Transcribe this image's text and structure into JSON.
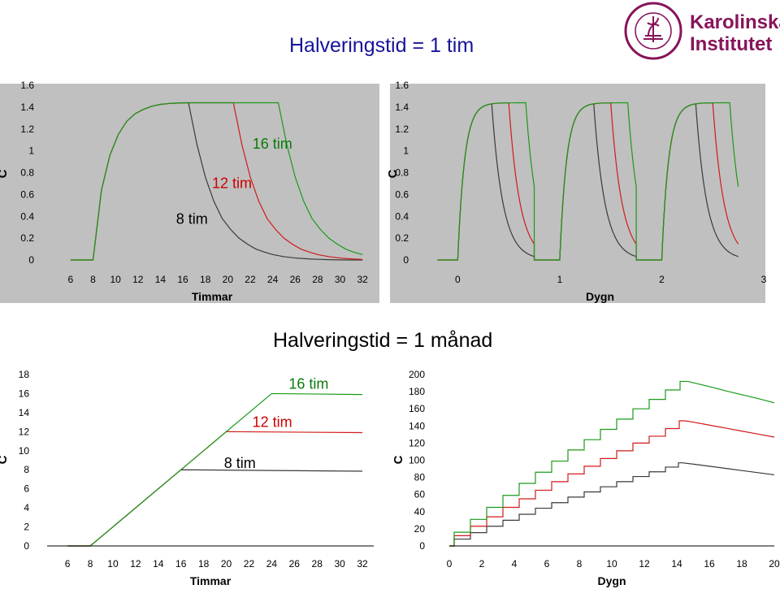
{
  "titles": {
    "top": "Halveringstid = 1 tim",
    "bottom": "Halveringstid = 1 månad"
  },
  "logo": {
    "seal_text": "KAROLINSKA INSTITUTET · ANNO 1810",
    "name_line1": "Karolinska",
    "name_line2": "Institutet",
    "color": "#87145a"
  },
  "colors": {
    "series_8": "#3a3a3a",
    "series_12": "#d21a1a",
    "series_16": "#1a9a1a",
    "plot_bg": "#c0c0c0",
    "frame": "#000000",
    "label_8": "#000000",
    "label_12": "#cc0000",
    "label_16": "#0a7a0a"
  },
  "chart_data": [
    {
      "id": "single-dose-hours",
      "type": "line",
      "xlabel": "Timmar",
      "ylabel": "C",
      "xlim": [
        4.2,
        33
      ],
      "ylim": [
        0,
        1.6
      ],
      "xticks": [
        "6",
        "8",
        "10",
        "12",
        "14",
        "16",
        "18",
        "20",
        "22",
        "24",
        "26",
        "28",
        "30",
        "32"
      ],
      "yticks": [
        "0",
        "0.2",
        "0.4",
        "0.6",
        "0.8",
        "1",
        "1.2",
        "1.4",
        "1.6"
      ],
      "series": [
        {
          "name": "8 tim",
          "color_key": "series_8",
          "x": [
            6,
            8,
            8.75,
            9.5,
            10.25,
            11,
            11.75,
            12.5,
            13.25,
            14,
            14.75,
            15.5,
            16,
            16.5,
            17.25,
            18,
            18.75,
            19.5,
            20.25,
            21,
            21.75,
            22.5,
            23.25,
            24,
            25,
            26,
            27,
            28,
            29,
            30,
            31,
            32
          ],
          "y": [
            0,
            0,
            0.64,
            0.96,
            1.15,
            1.27,
            1.34,
            1.38,
            1.409,
            1.425,
            1.433,
            1.437,
            1.44,
            1.44,
            1.06,
            0.76,
            0.54,
            0.38,
            0.28,
            0.2,
            0.145,
            0.1,
            0.073,
            0.05,
            0.03,
            0.018,
            0.011,
            0.006,
            0.003,
            0.001,
            0,
            0
          ]
        },
        {
          "name": "12 tim",
          "color_key": "series_12",
          "x": [
            6,
            8,
            8.75,
            9.5,
            10.25,
            11,
            11.75,
            12.5,
            13.25,
            14,
            14.75,
            15.5,
            16.5,
            17.5,
            18.5,
            19.5,
            20.5,
            21.25,
            22,
            22.75,
            23.5,
            24.25,
            25,
            25.75,
            26.5,
            27.25,
            28,
            29,
            30,
            31,
            32
          ],
          "y": [
            0,
            0,
            0.64,
            0.96,
            1.15,
            1.27,
            1.34,
            1.38,
            1.409,
            1.425,
            1.433,
            1.437,
            1.44,
            1.44,
            1.44,
            1.44,
            1.44,
            1.06,
            0.76,
            0.54,
            0.38,
            0.28,
            0.2,
            0.145,
            0.1,
            0.073,
            0.05,
            0.03,
            0.018,
            0.01,
            0.005
          ]
        },
        {
          "name": "16 tim",
          "color_key": "series_16",
          "x": [
            6,
            8,
            8.75,
            9.5,
            10.25,
            11,
            11.75,
            12.5,
            13.25,
            14,
            14.75,
            15.5,
            16.5,
            17.5,
            18.5,
            19.5,
            20.5,
            21.5,
            22.5,
            23.5,
            24.5,
            25.25,
            26,
            26.75,
            27.5,
            28.25,
            29,
            29.75,
            30.5,
            31.25,
            32
          ],
          "y": [
            0,
            0,
            0.64,
            0.96,
            1.15,
            1.27,
            1.34,
            1.38,
            1.409,
            1.425,
            1.433,
            1.437,
            1.44,
            1.44,
            1.44,
            1.44,
            1.44,
            1.44,
            1.44,
            1.44,
            1.44,
            1.06,
            0.76,
            0.54,
            0.38,
            0.28,
            0.2,
            0.145,
            0.1,
            0.07,
            0.05
          ]
        }
      ],
      "annotations": [
        {
          "text": "8 tim",
          "color_key": "label_8",
          "x": 15.4,
          "y": 0.33
        },
        {
          "text": "12 tim",
          "color_key": "label_12",
          "x": 18.6,
          "y": 0.66
        },
        {
          "text": "16 tim",
          "color_key": "label_16",
          "x": 22.2,
          "y": 1.02
        }
      ]
    },
    {
      "id": "repeated-dose-days",
      "type": "line",
      "xlabel": "Dygn",
      "ylabel": "C",
      "xlim": [
        -0.21,
        3
      ],
      "ylim": [
        0,
        1.6
      ],
      "xticks": [
        "0",
        "1",
        "2",
        "3"
      ],
      "yticks": [
        "0",
        "0.2",
        "0.4",
        "0.6",
        "0.8",
        "1",
        "1.2",
        "1.4",
        "1.6"
      ],
      "series": [
        {
          "name": "8 tim",
          "color_key": "series_8",
          "x_step_days": 0.0104167,
          "day_offset_days": 0.25,
          "infusion_hours": 8,
          "half_life_hours": 1,
          "steady_state": 1.44,
          "days": 3
        },
        {
          "name": "12 tim",
          "color_key": "series_12",
          "x_step_days": 0.0104167,
          "day_offset_days": 0.25,
          "infusion_hours": 12,
          "half_life_hours": 1,
          "steady_state": 1.44,
          "days": 3
        },
        {
          "name": "16 tim",
          "color_key": "series_16",
          "x_step_days": 0.0104167,
          "day_offset_days": 0.25,
          "infusion_hours": 16,
          "half_life_hours": 1,
          "steady_state": 1.44,
          "days": 3
        }
      ]
    },
    {
      "id": "single-dose-hours-month",
      "type": "line",
      "xlabel": "Timmar",
      "ylabel": "C",
      "xlim": [
        4.2,
        33
      ],
      "ylim": [
        0,
        18
      ],
      "xticks": [
        "6",
        "8",
        "10",
        "12",
        "14",
        "16",
        "18",
        "20",
        "22",
        "24",
        "26",
        "28",
        "30",
        "32"
      ],
      "yticks": [
        "0",
        "2",
        "4",
        "6",
        "8",
        "10",
        "12",
        "14",
        "16",
        "18"
      ],
      "series": [
        {
          "name": "8 tim",
          "color_key": "series_8",
          "x": [
            6,
            8,
            16,
            32
          ],
          "y": [
            0,
            0,
            8.0,
            7.85
          ]
        },
        {
          "name": "12 tim",
          "color_key": "series_12",
          "x": [
            6,
            8,
            20,
            32
          ],
          "y": [
            0,
            0,
            12.0,
            11.9
          ]
        },
        {
          "name": "16 tim",
          "color_key": "series_16",
          "x": [
            6,
            8,
            24,
            32
          ],
          "y": [
            0,
            0,
            16.0,
            15.9
          ]
        }
      ],
      "annotations": [
        {
          "text": "8 tim",
          "color_key": "label_8",
          "x": 19.8,
          "y": 8.2
        },
        {
          "text": "12 tim",
          "color_key": "label_12",
          "x": 22.3,
          "y": 12.5
        },
        {
          "text": "16 tim",
          "color_key": "label_16",
          "x": 25.5,
          "y": 16.5
        }
      ]
    },
    {
      "id": "repeated-dose-days-month",
      "type": "line",
      "xlabel": "Dygn",
      "ylabel": "C",
      "xlim": [
        0,
        20
      ],
      "ylim": [
        0,
        200
      ],
      "xticks": [
        "0",
        "2",
        "4",
        "6",
        "8",
        "10",
        "12",
        "14",
        "16",
        "18",
        "20"
      ],
      "yticks": [
        "0",
        "20",
        "40",
        "60",
        "80",
        "100",
        "120",
        "140",
        "160",
        "180",
        "200"
      ],
      "series": [
        {
          "name": "8 tim",
          "color_key": "series_8",
          "x": [
            0,
            1,
            2,
            3,
            4,
            5,
            6,
            7,
            8,
            9,
            10,
            11,
            12,
            13,
            14,
            14.33,
            15,
            16,
            17,
            18,
            19,
            20
          ],
          "y": [
            0,
            8,
            15.5,
            23,
            30,
            37,
            44,
            50.5,
            57,
            63,
            69,
            75,
            81,
            86.5,
            92,
            97,
            95.5,
            93,
            90.5,
            88,
            85.5,
            83
          ]
        },
        {
          "name": "12 tim",
          "color_key": "series_12",
          "x": [
            0,
            1,
            2,
            3,
            4,
            5,
            6,
            7,
            8,
            9,
            10,
            11,
            12,
            13,
            14,
            14.5,
            15,
            16,
            17,
            18,
            19,
            20
          ],
          "y": [
            0,
            12,
            23,
            34,
            45,
            55,
            65,
            75,
            84,
            93,
            102,
            111,
            120,
            128,
            137,
            146,
            144.5,
            141,
            137.5,
            134,
            130.5,
            127
          ]
        },
        {
          "name": "16 tim",
          "color_key": "series_16",
          "x": [
            0,
            1,
            2,
            3,
            4,
            5,
            6,
            7,
            8,
            9,
            10,
            11,
            12,
            13,
            14,
            14.67,
            15,
            16,
            17,
            18,
            19,
            20
          ],
          "y": [
            0,
            16,
            31,
            45,
            59,
            73,
            86,
            99,
            112,
            124,
            136,
            148,
            160,
            171,
            182,
            192,
            190.5,
            186,
            181,
            176.5,
            172,
            167
          ]
        }
      ]
    }
  ]
}
